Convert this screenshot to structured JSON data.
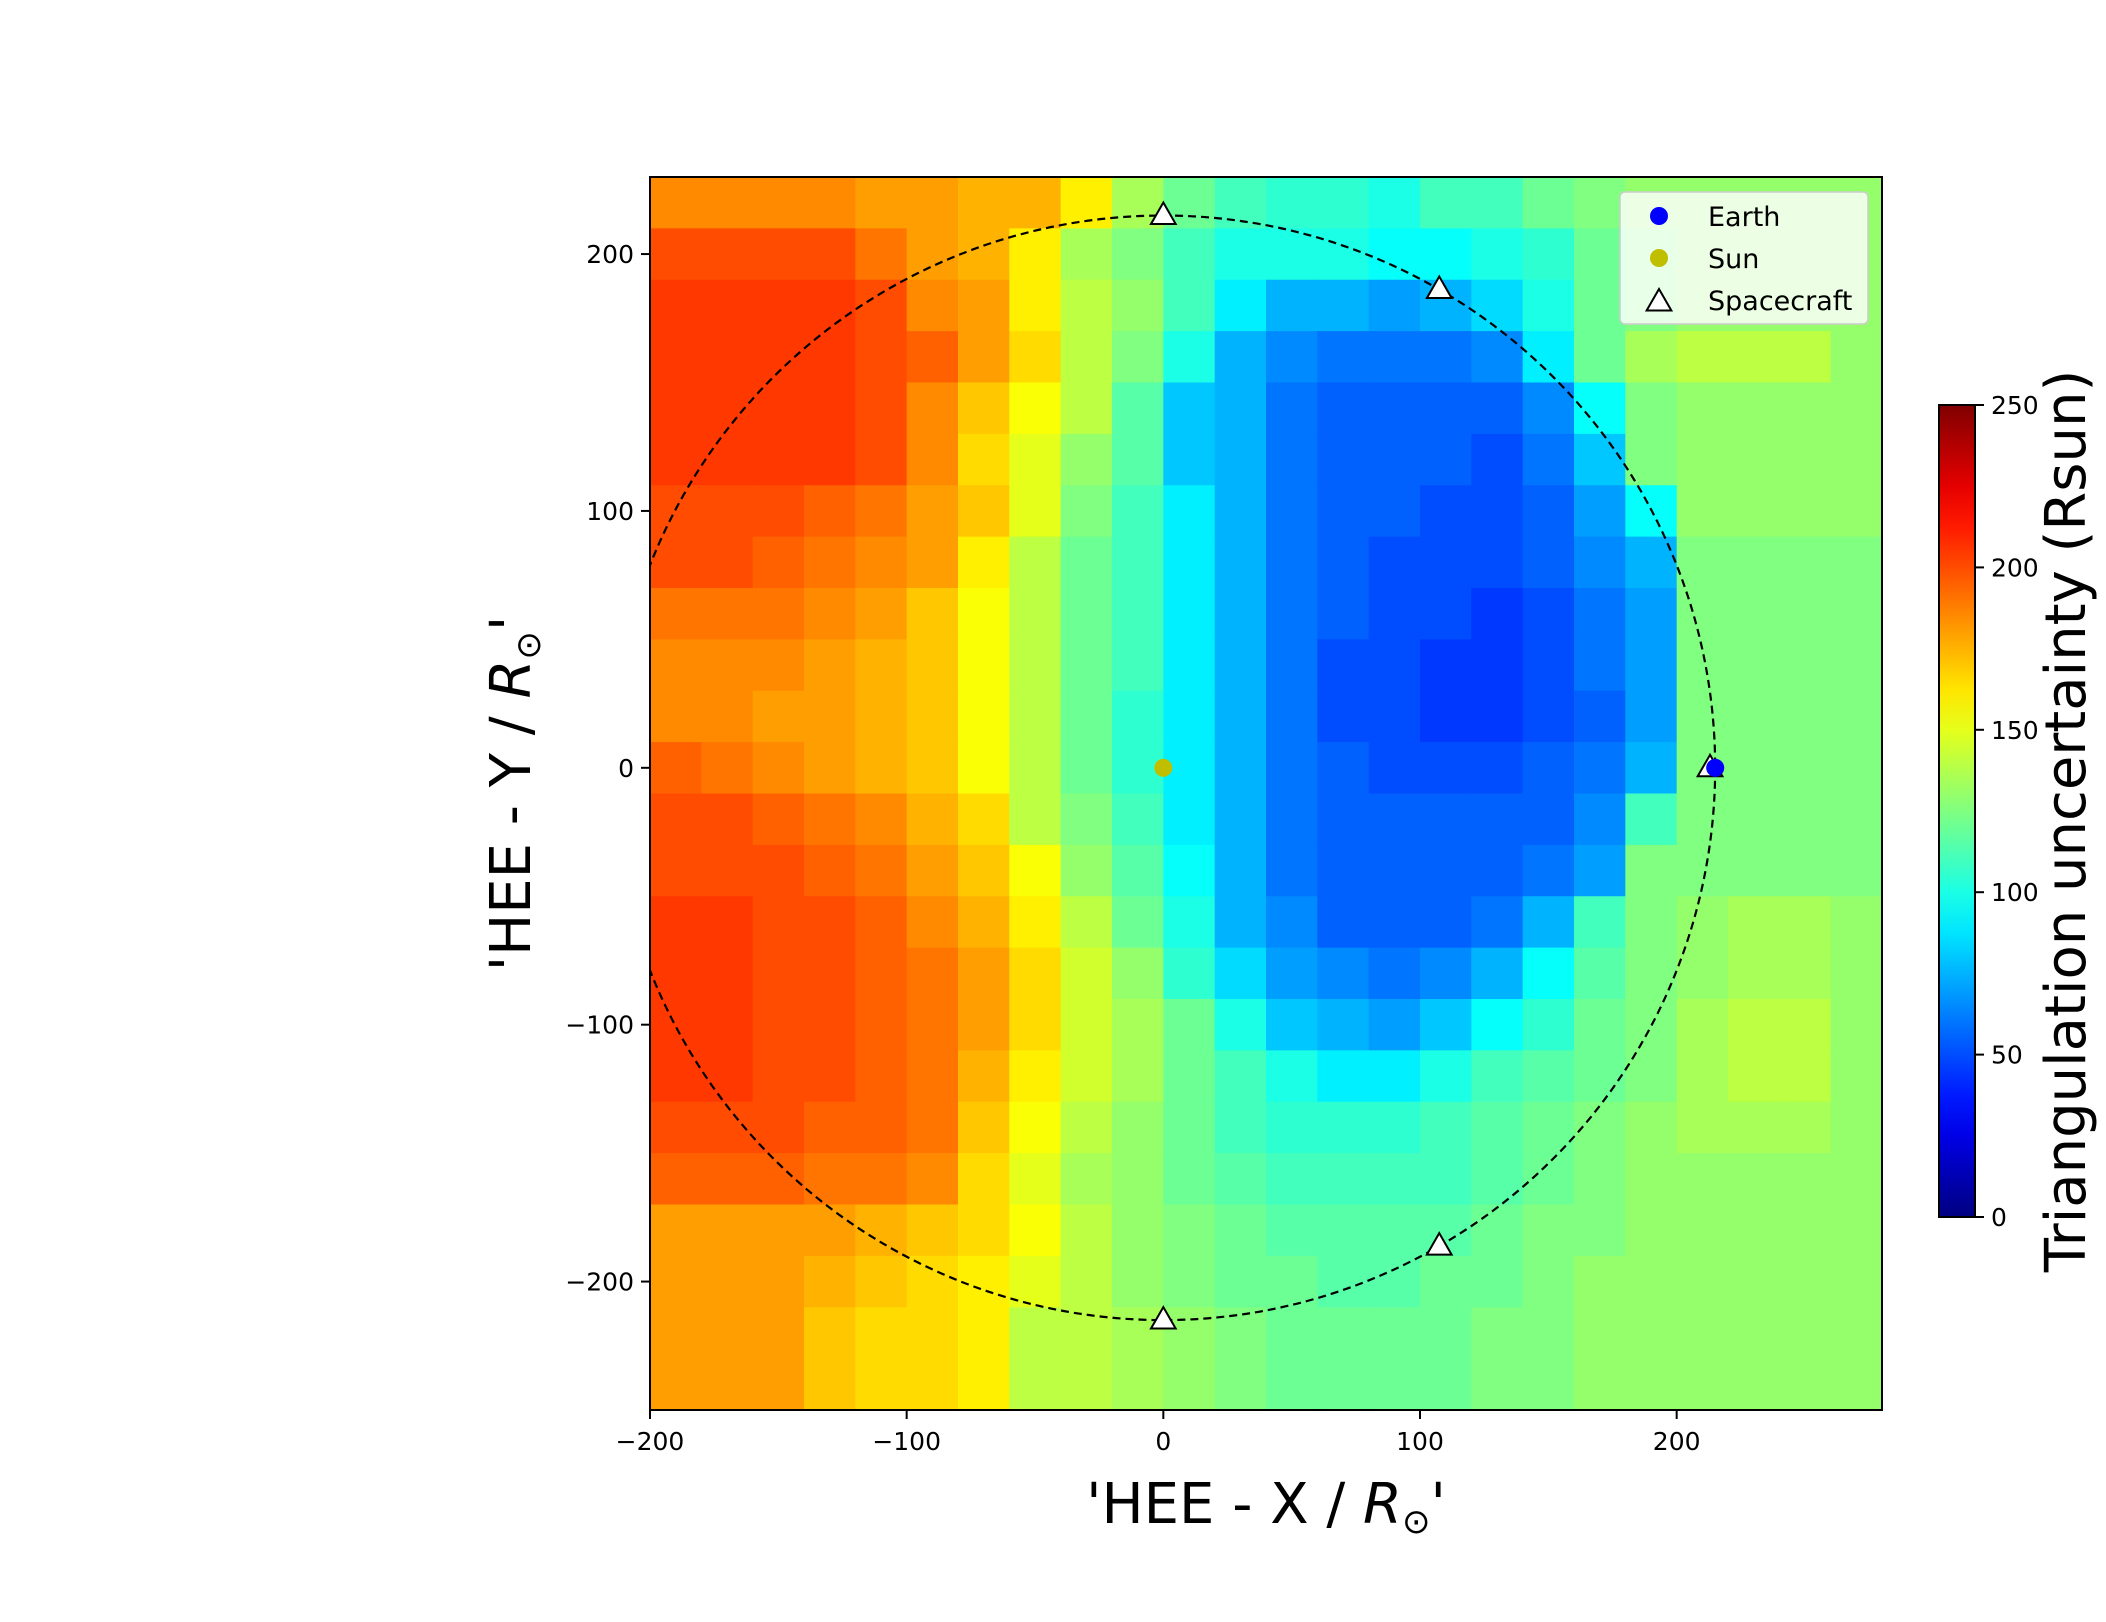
{
  "chart_data": {
    "type": "heatmap",
    "title": "",
    "xlabel": {
      "prefix": "'HEE - X / ",
      "symbol": "R",
      "subscript": "⊙",
      "suffix": "'"
    },
    "ylabel": {
      "prefix": "'HEE - Y / ",
      "symbol": "R",
      "subscript": "⊙",
      "suffix": "'"
    },
    "xlim": [
      -200,
      280
    ],
    "ylim": [
      -250,
      230
    ],
    "xticks": [
      -200,
      -100,
      0,
      100,
      200
    ],
    "yticks": [
      -200,
      -100,
      0,
      100,
      200
    ],
    "xtick_labels": [
      "−200",
      "−100",
      "0",
      "100",
      "200"
    ],
    "ytick_labels": [
      "−200",
      "−100",
      "0",
      "100",
      "200"
    ],
    "grid_x_start": -200,
    "grid_y_top": 230,
    "cell_size": 20,
    "colormap": "jet",
    "colorbar": {
      "label": "Triangulation uncertainty (Rsun)",
      "range": [
        0,
        250
      ],
      "ticks": [
        0,
        50,
        100,
        150,
        200,
        250
      ],
      "tick_labels": [
        "0",
        "50",
        "100",
        "150",
        "200",
        "250"
      ]
    },
    "grid_values": [
      [
        185,
        185,
        185,
        185,
        180,
        180,
        175,
        175,
        160,
        135,
        120,
        110,
        105,
        105,
        100,
        110,
        110,
        120,
        125,
        130,
        130,
        130,
        130,
        130
      ],
      [
        200,
        200,
        200,
        200,
        190,
        180,
        175,
        160,
        135,
        125,
        110,
        100,
        100,
        100,
        95,
        95,
        100,
        105,
        120,
        125,
        130,
        130,
        130,
        130
      ],
      [
        205,
        205,
        205,
        205,
        200,
        185,
        180,
        160,
        140,
        130,
        110,
        90,
        75,
        75,
        70,
        75,
        85,
        100,
        120,
        125,
        130,
        130,
        130,
        130
      ],
      [
        205,
        205,
        205,
        205,
        200,
        195,
        180,
        165,
        140,
        125,
        100,
        75,
        65,
        60,
        60,
        60,
        65,
        90,
        120,
        135,
        140,
        140,
        140,
        130
      ],
      [
        205,
        205,
        205,
        205,
        200,
        185,
        170,
        155,
        140,
        115,
        80,
        75,
        60,
        55,
        55,
        55,
        55,
        65,
        95,
        125,
        130,
        130,
        130,
        130
      ],
      [
        205,
        205,
        205,
        205,
        200,
        185,
        165,
        150,
        130,
        115,
        80,
        75,
        60,
        55,
        55,
        55,
        50,
        60,
        80,
        125,
        130,
        130,
        130,
        130
      ],
      [
        200,
        200,
        200,
        195,
        190,
        180,
        170,
        150,
        125,
        110,
        90,
        75,
        60,
        55,
        55,
        50,
        50,
        55,
        70,
        95,
        130,
        130,
        130,
        130
      ],
      [
        200,
        200,
        195,
        190,
        185,
        180,
        160,
        140,
        120,
        110,
        90,
        75,
        60,
        55,
        50,
        50,
        50,
        55,
        65,
        75,
        125,
        125,
        125,
        125
      ],
      [
        190,
        190,
        190,
        185,
        180,
        170,
        155,
        140,
        120,
        110,
        90,
        75,
        60,
        55,
        50,
        50,
        45,
        50,
        60,
        70,
        125,
        125,
        125,
        125
      ],
      [
        185,
        185,
        185,
        180,
        175,
        170,
        155,
        140,
        120,
        110,
        90,
        75,
        60,
        50,
        50,
        45,
        45,
        50,
        60,
        70,
        125,
        125,
        125,
        125
      ],
      [
        185,
        185,
        180,
        180,
        175,
        170,
        155,
        140,
        120,
        105,
        90,
        75,
        60,
        50,
        50,
        45,
        45,
        50,
        55,
        70,
        125,
        125,
        125,
        125
      ],
      [
        195,
        190,
        185,
        180,
        175,
        170,
        155,
        140,
        120,
        105,
        90,
        75,
        60,
        55,
        50,
        50,
        50,
        55,
        60,
        75,
        125,
        125,
        125,
        125
      ],
      [
        200,
        200,
        195,
        190,
        185,
        175,
        165,
        140,
        125,
        110,
        90,
        75,
        60,
        55,
        55,
        55,
        55,
        55,
        65,
        110,
        125,
        125,
        125,
        125
      ],
      [
        200,
        200,
        200,
        195,
        190,
        180,
        170,
        155,
        130,
        115,
        95,
        75,
        60,
        55,
        55,
        55,
        55,
        60,
        70,
        125,
        125,
        125,
        125,
        125
      ],
      [
        205,
        205,
        200,
        200,
        195,
        185,
        175,
        160,
        140,
        120,
        100,
        75,
        65,
        55,
        55,
        55,
        60,
        75,
        110,
        125,
        130,
        135,
        135,
        130
      ],
      [
        205,
        205,
        200,
        200,
        195,
        190,
        180,
        165,
        145,
        130,
        105,
        85,
        70,
        65,
        60,
        65,
        75,
        95,
        115,
        125,
        130,
        135,
        135,
        130
      ],
      [
        205,
        205,
        200,
        200,
        195,
        190,
        180,
        165,
        145,
        135,
        120,
        100,
        80,
        75,
        70,
        80,
        95,
        105,
        120,
        125,
        135,
        140,
        140,
        130
      ],
      [
        205,
        205,
        200,
        200,
        195,
        190,
        175,
        160,
        145,
        135,
        120,
        110,
        100,
        90,
        90,
        100,
        110,
        115,
        120,
        125,
        135,
        140,
        140,
        130
      ],
      [
        200,
        200,
        200,
        195,
        195,
        190,
        170,
        155,
        140,
        130,
        120,
        110,
        105,
        105,
        105,
        110,
        115,
        120,
        125,
        130,
        135,
        135,
        135,
        130
      ],
      [
        195,
        195,
        195,
        190,
        190,
        185,
        165,
        150,
        135,
        130,
        120,
        115,
        110,
        110,
        110,
        110,
        115,
        120,
        125,
        130,
        130,
        130,
        130,
        130
      ],
      [
        180,
        180,
        180,
        180,
        175,
        170,
        165,
        155,
        140,
        130,
        125,
        120,
        115,
        115,
        115,
        115,
        120,
        125,
        125,
        130,
        130,
        130,
        130,
        130
      ],
      [
        180,
        180,
        180,
        175,
        170,
        165,
        160,
        150,
        140,
        130,
        125,
        120,
        120,
        115,
        115,
        120,
        120,
        125,
        130,
        130,
        130,
        130,
        130,
        130
      ],
      [
        180,
        180,
        180,
        170,
        165,
        165,
        160,
        140,
        140,
        135,
        130,
        125,
        120,
        120,
        120,
        120,
        125,
        125,
        130,
        130,
        130,
        130,
        130,
        130
      ],
      [
        180,
        180,
        180,
        170,
        165,
        165,
        160,
        140,
        140,
        135,
        130,
        125,
        120,
        120,
        120,
        120,
        125,
        125,
        130,
        130,
        130,
        130,
        130,
        130
      ]
    ],
    "orbit": {
      "center": [
        0,
        0
      ],
      "radius": 215,
      "style": "dashed",
      "color": "#000000"
    },
    "points": [
      {
        "label": "Earth",
        "x": 215,
        "y": 0,
        "color": "#0000ff",
        "marker": "circle"
      },
      {
        "label": "Sun",
        "x": 0,
        "y": 0,
        "color": "#bfbf00",
        "marker": "circle"
      }
    ],
    "spacecraft": [
      {
        "x": 0,
        "y": 215
      },
      {
        "x": 107.5,
        "y": 186.2
      },
      {
        "x": 213,
        "y": 0
      },
      {
        "x": 107.5,
        "y": -186.2
      },
      {
        "x": 0,
        "y": -215
      }
    ],
    "legend": {
      "placement": "upper-right",
      "entries": [
        {
          "label": "Earth",
          "marker": "circle",
          "color": "#0000ff"
        },
        {
          "label": "Sun",
          "marker": "circle",
          "color": "#bfbf00"
        },
        {
          "label": "Spacecraft",
          "marker": "triangle-open",
          "color": "#000000"
        }
      ]
    }
  }
}
